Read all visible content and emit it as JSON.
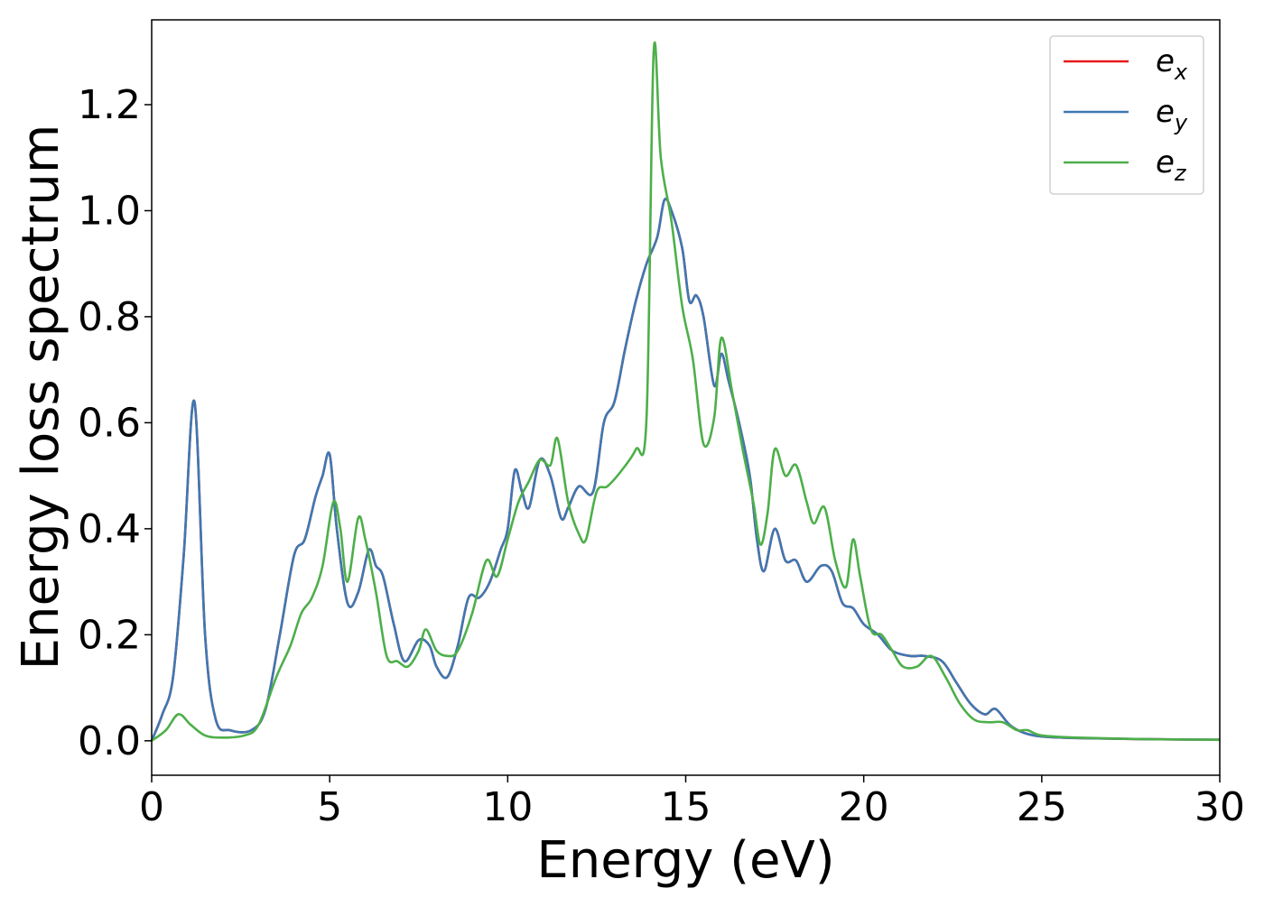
{
  "chart_data": {
    "type": "line",
    "title": "",
    "xlabel": "Energy (eV)",
    "ylabel": "Energy loss spectrum",
    "xlim": [
      0,
      30
    ],
    "ylim": [
      -0.065,
      1.36
    ],
    "xticks": [
      0,
      5,
      10,
      15,
      20,
      25,
      30
    ],
    "xtick_labels": [
      "0",
      "5",
      "10",
      "15",
      "20",
      "25",
      "30"
    ],
    "yticks": [
      0.0,
      0.2,
      0.4,
      0.6,
      0.8,
      1.0,
      1.2
    ],
    "ytick_labels": [
      "0.0",
      "0.2",
      "0.4",
      "0.6",
      "0.8",
      "1.0",
      "1.2"
    ],
    "grid": false,
    "legend_position": "top-right",
    "series": [
      {
        "name": "e_x",
        "legend_base": "e",
        "legend_sub": "x",
        "color": "#e41a1c",
        "points": [
          [
            0,
            0
          ],
          [
            0.3,
            0.05
          ],
          [
            0.6,
            0.12
          ],
          [
            0.9,
            0.35
          ],
          [
            1.2,
            0.64
          ],
          [
            1.5,
            0.2
          ],
          [
            1.8,
            0.04
          ],
          [
            2.2,
            0.02
          ],
          [
            2.8,
            0.02
          ],
          [
            3.2,
            0.06
          ],
          [
            3.6,
            0.2
          ],
          [
            4.0,
            0.35
          ],
          [
            4.3,
            0.38
          ],
          [
            4.6,
            0.46
          ],
          [
            4.8,
            0.5
          ],
          [
            5.0,
            0.54
          ],
          [
            5.2,
            0.4
          ],
          [
            5.5,
            0.26
          ],
          [
            5.8,
            0.28
          ],
          [
            6.1,
            0.36
          ],
          [
            6.3,
            0.33
          ],
          [
            6.5,
            0.31
          ],
          [
            6.8,
            0.22
          ],
          [
            7.1,
            0.15
          ],
          [
            7.5,
            0.19
          ],
          [
            7.8,
            0.18
          ],
          [
            8.0,
            0.14
          ],
          [
            8.3,
            0.12
          ],
          [
            8.6,
            0.18
          ],
          [
            8.9,
            0.27
          ],
          [
            9.2,
            0.27
          ],
          [
            9.5,
            0.3
          ],
          [
            9.8,
            0.36
          ],
          [
            10.0,
            0.4
          ],
          [
            10.2,
            0.51
          ],
          [
            10.4,
            0.47
          ],
          [
            10.6,
            0.44
          ],
          [
            10.9,
            0.53
          ],
          [
            11.2,
            0.5
          ],
          [
            11.5,
            0.42
          ],
          [
            11.7,
            0.44
          ],
          [
            12.0,
            0.48
          ],
          [
            12.4,
            0.47
          ],
          [
            12.7,
            0.6
          ],
          [
            13.0,
            0.64
          ],
          [
            13.3,
            0.74
          ],
          [
            13.6,
            0.83
          ],
          [
            13.9,
            0.9
          ],
          [
            14.2,
            0.95
          ],
          [
            14.4,
            1.02
          ],
          [
            14.6,
            1.0
          ],
          [
            14.9,
            0.93
          ],
          [
            15.1,
            0.83
          ],
          [
            15.3,
            0.84
          ],
          [
            15.5,
            0.8
          ],
          [
            15.8,
            0.67
          ],
          [
            16.0,
            0.73
          ],
          [
            16.2,
            0.68
          ],
          [
            16.5,
            0.6
          ],
          [
            16.8,
            0.5
          ],
          [
            17.0,
            0.38
          ],
          [
            17.2,
            0.32
          ],
          [
            17.5,
            0.4
          ],
          [
            17.8,
            0.34
          ],
          [
            18.1,
            0.34
          ],
          [
            18.4,
            0.3
          ],
          [
            18.8,
            0.33
          ],
          [
            19.1,
            0.32
          ],
          [
            19.4,
            0.26
          ],
          [
            19.7,
            0.25
          ],
          [
            20.0,
            0.22
          ],
          [
            20.4,
            0.2
          ],
          [
            20.8,
            0.17
          ],
          [
            21.3,
            0.16
          ],
          [
            21.7,
            0.16
          ],
          [
            22.2,
            0.15
          ],
          [
            22.6,
            0.11
          ],
          [
            23.0,
            0.07
          ],
          [
            23.4,
            0.05
          ],
          [
            23.7,
            0.06
          ],
          [
            24.1,
            0.03
          ],
          [
            24.5,
            0.015
          ],
          [
            25.0,
            0.008
          ],
          [
            26,
            0.005
          ],
          [
            28,
            0.003
          ],
          [
            30,
            0.002
          ]
        ]
      },
      {
        "name": "e_y",
        "legend_base": "e",
        "legend_sub": "y",
        "color": "#3e78b2",
        "points": [
          [
            0,
            0
          ],
          [
            0.3,
            0.05
          ],
          [
            0.6,
            0.12
          ],
          [
            0.9,
            0.35
          ],
          [
            1.2,
            0.64
          ],
          [
            1.5,
            0.2
          ],
          [
            1.8,
            0.04
          ],
          [
            2.2,
            0.02
          ],
          [
            2.8,
            0.02
          ],
          [
            3.2,
            0.06
          ],
          [
            3.6,
            0.2
          ],
          [
            4.0,
            0.35
          ],
          [
            4.3,
            0.38
          ],
          [
            4.6,
            0.46
          ],
          [
            4.8,
            0.5
          ],
          [
            5.0,
            0.54
          ],
          [
            5.2,
            0.4
          ],
          [
            5.5,
            0.26
          ],
          [
            5.8,
            0.28
          ],
          [
            6.1,
            0.36
          ],
          [
            6.3,
            0.33
          ],
          [
            6.5,
            0.31
          ],
          [
            6.8,
            0.22
          ],
          [
            7.1,
            0.15
          ],
          [
            7.5,
            0.19
          ],
          [
            7.8,
            0.18
          ],
          [
            8.0,
            0.14
          ],
          [
            8.3,
            0.12
          ],
          [
            8.6,
            0.18
          ],
          [
            8.9,
            0.27
          ],
          [
            9.2,
            0.27
          ],
          [
            9.5,
            0.3
          ],
          [
            9.8,
            0.36
          ],
          [
            10.0,
            0.4
          ],
          [
            10.2,
            0.51
          ],
          [
            10.4,
            0.47
          ],
          [
            10.6,
            0.44
          ],
          [
            10.9,
            0.53
          ],
          [
            11.2,
            0.5
          ],
          [
            11.5,
            0.42
          ],
          [
            11.7,
            0.44
          ],
          [
            12.0,
            0.48
          ],
          [
            12.4,
            0.47
          ],
          [
            12.7,
            0.6
          ],
          [
            13.0,
            0.64
          ],
          [
            13.3,
            0.74
          ],
          [
            13.6,
            0.83
          ],
          [
            13.9,
            0.9
          ],
          [
            14.2,
            0.95
          ],
          [
            14.4,
            1.02
          ],
          [
            14.6,
            1.0
          ],
          [
            14.9,
            0.93
          ],
          [
            15.1,
            0.83
          ],
          [
            15.3,
            0.84
          ],
          [
            15.5,
            0.8
          ],
          [
            15.8,
            0.67
          ],
          [
            16.0,
            0.73
          ],
          [
            16.2,
            0.68
          ],
          [
            16.5,
            0.6
          ],
          [
            16.8,
            0.5
          ],
          [
            17.0,
            0.38
          ],
          [
            17.2,
            0.32
          ],
          [
            17.5,
            0.4
          ],
          [
            17.8,
            0.34
          ],
          [
            18.1,
            0.34
          ],
          [
            18.4,
            0.3
          ],
          [
            18.8,
            0.33
          ],
          [
            19.1,
            0.32
          ],
          [
            19.4,
            0.26
          ],
          [
            19.7,
            0.25
          ],
          [
            20.0,
            0.22
          ],
          [
            20.4,
            0.2
          ],
          [
            20.8,
            0.17
          ],
          [
            21.3,
            0.16
          ],
          [
            21.7,
            0.16
          ],
          [
            22.2,
            0.15
          ],
          [
            22.6,
            0.11
          ],
          [
            23.0,
            0.07
          ],
          [
            23.4,
            0.05
          ],
          [
            23.7,
            0.06
          ],
          [
            24.1,
            0.03
          ],
          [
            24.5,
            0.015
          ],
          [
            25.0,
            0.008
          ],
          [
            26,
            0.005
          ],
          [
            28,
            0.003
          ],
          [
            30,
            0.002
          ]
        ]
      },
      {
        "name": "e_z",
        "legend_base": "e",
        "legend_sub": "z",
        "color": "#4daf4a",
        "points": [
          [
            0,
            0
          ],
          [
            0.4,
            0.02
          ],
          [
            0.75,
            0.05
          ],
          [
            1.1,
            0.03
          ],
          [
            1.5,
            0.01
          ],
          [
            2.0,
            0.006
          ],
          [
            2.6,
            0.01
          ],
          [
            3.0,
            0.03
          ],
          [
            3.5,
            0.12
          ],
          [
            3.9,
            0.18
          ],
          [
            4.2,
            0.24
          ],
          [
            4.5,
            0.27
          ],
          [
            4.8,
            0.33
          ],
          [
            5.1,
            0.45
          ],
          [
            5.3,
            0.4
          ],
          [
            5.5,
            0.3
          ],
          [
            5.8,
            0.42
          ],
          [
            6.0,
            0.38
          ],
          [
            6.3,
            0.28
          ],
          [
            6.6,
            0.16
          ],
          [
            6.9,
            0.15
          ],
          [
            7.2,
            0.14
          ],
          [
            7.5,
            0.17
          ],
          [
            7.7,
            0.21
          ],
          [
            8.0,
            0.17
          ],
          [
            8.3,
            0.16
          ],
          [
            8.6,
            0.17
          ],
          [
            9.0,
            0.24
          ],
          [
            9.4,
            0.34
          ],
          [
            9.7,
            0.31
          ],
          [
            10.0,
            0.38
          ],
          [
            10.3,
            0.45
          ],
          [
            10.6,
            0.49
          ],
          [
            10.9,
            0.53
          ],
          [
            11.2,
            0.52
          ],
          [
            11.4,
            0.57
          ],
          [
            11.7,
            0.45
          ],
          [
            12.0,
            0.39
          ],
          [
            12.2,
            0.38
          ],
          [
            12.5,
            0.47
          ],
          [
            12.8,
            0.48
          ],
          [
            13.2,
            0.51
          ],
          [
            13.6,
            0.55
          ],
          [
            13.9,
            0.61
          ],
          [
            14.1,
            1.3
          ],
          [
            14.3,
            1.1
          ],
          [
            14.6,
            0.98
          ],
          [
            14.9,
            0.82
          ],
          [
            15.2,
            0.72
          ],
          [
            15.5,
            0.56
          ],
          [
            15.8,
            0.61
          ],
          [
            16.0,
            0.76
          ],
          [
            16.3,
            0.66
          ],
          [
            16.6,
            0.55
          ],
          [
            16.9,
            0.45
          ],
          [
            17.1,
            0.37
          ],
          [
            17.3,
            0.43
          ],
          [
            17.5,
            0.55
          ],
          [
            17.8,
            0.5
          ],
          [
            18.1,
            0.52
          ],
          [
            18.4,
            0.45
          ],
          [
            18.6,
            0.41
          ],
          [
            18.9,
            0.44
          ],
          [
            19.2,
            0.34
          ],
          [
            19.5,
            0.29
          ],
          [
            19.7,
            0.38
          ],
          [
            19.9,
            0.31
          ],
          [
            20.2,
            0.21
          ],
          [
            20.5,
            0.2
          ],
          [
            20.8,
            0.17
          ],
          [
            21.1,
            0.14
          ],
          [
            21.5,
            0.14
          ],
          [
            21.9,
            0.16
          ],
          [
            22.3,
            0.12
          ],
          [
            22.7,
            0.07
          ],
          [
            23.1,
            0.04
          ],
          [
            23.5,
            0.035
          ],
          [
            23.9,
            0.035
          ],
          [
            24.3,
            0.02
          ],
          [
            24.6,
            0.02
          ],
          [
            25.0,
            0.01
          ],
          [
            26,
            0.006
          ],
          [
            28,
            0.003
          ],
          [
            30,
            0.002
          ]
        ]
      }
    ]
  }
}
